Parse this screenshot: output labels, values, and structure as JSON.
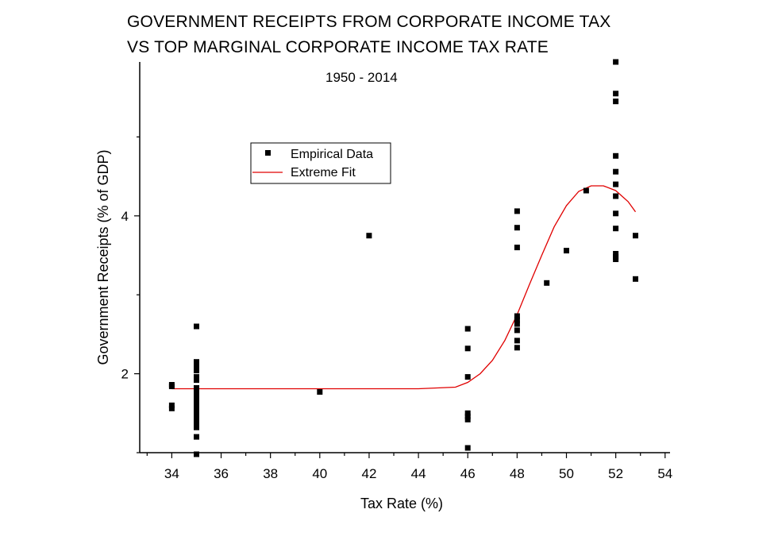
{
  "chart_data": {
    "type": "scatter",
    "title": "GOVERNMENT RECEIPTS FROM CORPORATE INCOME TAX",
    "title_line2": "VS TOP MARGINAL CORPORATE INCOME TAX RATE",
    "subtitle": "1950 - 2014",
    "xlabel": "Tax Rate (%)",
    "ylabel": "Government Receipts (% of GDP)",
    "xlim": [
      32.7,
      54.2
    ],
    "ylim": [
      1.0,
      5.95
    ],
    "x_ticks": [
      34,
      36,
      38,
      40,
      42,
      44,
      46,
      48,
      50,
      52,
      54
    ],
    "y_ticks": [
      2,
      4
    ],
    "grid": false,
    "legend_position": "upper-left",
    "colors": {
      "data": "#000000",
      "fit": "#e00000"
    },
    "series": [
      {
        "name": "Empirical Data",
        "kind": "scatter",
        "points": [
          [
            34,
            1.86
          ],
          [
            34,
            1.84
          ],
          [
            34,
            1.6
          ],
          [
            34,
            1.56
          ],
          [
            35,
            2.6
          ],
          [
            35,
            2.15
          ],
          [
            35,
            2.12
          ],
          [
            35,
            2.08
          ],
          [
            35,
            2.04
          ],
          [
            35,
            1.96
          ],
          [
            35,
            1.92
          ],
          [
            35,
            1.82
          ],
          [
            35,
            1.78
          ],
          [
            35,
            1.72
          ],
          [
            35,
            1.66
          ],
          [
            35,
            1.6
          ],
          [
            35,
            1.54
          ],
          [
            35,
            1.48
          ],
          [
            35,
            1.42
          ],
          [
            35,
            1.38
          ],
          [
            35,
            1.32
          ],
          [
            35,
            1.2
          ],
          [
            35,
            0.98
          ],
          [
            40,
            1.77
          ],
          [
            42,
            3.75
          ],
          [
            46,
            2.57
          ],
          [
            46,
            2.32
          ],
          [
            46,
            1.96
          ],
          [
            46,
            1.5
          ],
          [
            46,
            1.46
          ],
          [
            46,
            1.42
          ],
          [
            46,
            1.06
          ],
          [
            48,
            4.06
          ],
          [
            48,
            3.85
          ],
          [
            48,
            3.6
          ],
          [
            48,
            2.73
          ],
          [
            48,
            2.68
          ],
          [
            48,
            2.63
          ],
          [
            48,
            2.55
          ],
          [
            48,
            2.42
          ],
          [
            48,
            2.33
          ],
          [
            49.2,
            3.15
          ],
          [
            50,
            3.56
          ],
          [
            50.8,
            4.32
          ],
          [
            52,
            5.95
          ],
          [
            52,
            5.55
          ],
          [
            52,
            5.45
          ],
          [
            52,
            4.76
          ],
          [
            52,
            4.56
          ],
          [
            52,
            4.4
          ],
          [
            52,
            4.25
          ],
          [
            52,
            4.03
          ],
          [
            52,
            3.84
          ],
          [
            52,
            3.52
          ],
          [
            52,
            3.48
          ],
          [
            52,
            3.45
          ],
          [
            52.8,
            3.75
          ],
          [
            52.8,
            3.2
          ]
        ]
      },
      {
        "name": "Extreme Fit",
        "kind": "line",
        "points": [
          [
            34,
            1.81
          ],
          [
            40,
            1.81
          ],
          [
            44,
            1.81
          ],
          [
            45.5,
            1.83
          ],
          [
            46,
            1.89
          ],
          [
            46.5,
            2.0
          ],
          [
            47,
            2.17
          ],
          [
            47.5,
            2.42
          ],
          [
            48,
            2.75
          ],
          [
            48.5,
            3.13
          ],
          [
            49,
            3.5
          ],
          [
            49.5,
            3.86
          ],
          [
            50,
            4.13
          ],
          [
            50.5,
            4.31
          ],
          [
            51,
            4.38
          ],
          [
            51.5,
            4.38
          ],
          [
            52,
            4.32
          ],
          [
            52.5,
            4.18
          ],
          [
            52.8,
            4.05
          ]
        ]
      }
    ]
  }
}
